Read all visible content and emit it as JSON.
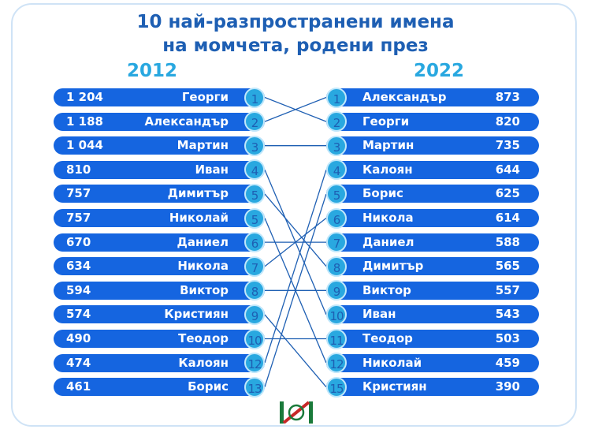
{
  "title_line1": "10 най-разпространени имена",
  "title_line2": "на момчета, родени през",
  "colors": {
    "row": "#1565e0",
    "circle": "#29a8e0",
    "title": "#1e5fb3",
    "line": "#1e5fb3"
  },
  "chart_data": {
    "type": "table",
    "left": {
      "year_label": "2012 година",
      "rows": [
        {
          "count": "1 204",
          "name": "Георги",
          "rank": "1"
        },
        {
          "count": "1 188",
          "name": "Александър",
          "rank": "2"
        },
        {
          "count": "1 044",
          "name": "Мартин",
          "rank": "3"
        },
        {
          "count": "810",
          "name": "Иван",
          "rank": "4"
        },
        {
          "count": "757",
          "name": "Димитър",
          "rank": "5"
        },
        {
          "count": "757",
          "name": "Николай",
          "rank": "5"
        },
        {
          "count": "670",
          "name": "Даниел",
          "rank": "6"
        },
        {
          "count": "634",
          "name": "Никола",
          "rank": "7"
        },
        {
          "count": "594",
          "name": "Виктор",
          "rank": "8"
        },
        {
          "count": "574",
          "name": "Кристиян",
          "rank": "9"
        },
        {
          "count": "490",
          "name": "Теодор",
          "rank": "10"
        },
        {
          "count": "474",
          "name": "Калоян",
          "rank": "12"
        },
        {
          "count": "461",
          "name": "Борис",
          "rank": "13"
        }
      ]
    },
    "right": {
      "year_label": "2022 година",
      "rows": [
        {
          "rank": "1",
          "name": "Александър",
          "count": "873"
        },
        {
          "rank": "2",
          "name": "Георги",
          "count": "820"
        },
        {
          "rank": "3",
          "name": "Мартин",
          "count": "735"
        },
        {
          "rank": "4",
          "name": "Калоян",
          "count": "644"
        },
        {
          "rank": "5",
          "name": "Борис",
          "count": "625"
        },
        {
          "rank": "6",
          "name": "Никола",
          "count": "614"
        },
        {
          "rank": "7",
          "name": "Даниел",
          "count": "588"
        },
        {
          "rank": "8",
          "name": "Димитър",
          "count": "565"
        },
        {
          "rank": "9",
          "name": "Виктор",
          "count": "557"
        },
        {
          "rank": "10",
          "name": "Иван",
          "count": "543"
        },
        {
          "rank": "11",
          "name": "Теодор",
          "count": "503"
        },
        {
          "rank": "12",
          "name": "Николай",
          "count": "459"
        },
        {
          "rank": "15",
          "name": "Кристиян",
          "count": "390"
        }
      ]
    }
  }
}
